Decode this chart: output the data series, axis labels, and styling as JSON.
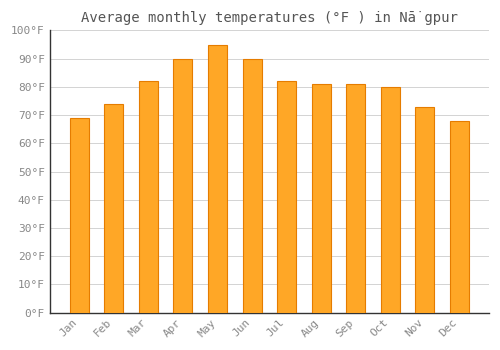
{
  "title": "Average monthly temperatures (°F ) in Nā̇gpur",
  "months": [
    "Jan",
    "Feb",
    "Mar",
    "Apr",
    "May",
    "Jun",
    "Jul",
    "Aug",
    "Sep",
    "Oct",
    "Nov",
    "Dec"
  ],
  "values": [
    69,
    74,
    82,
    90,
    95,
    90,
    82,
    81,
    81,
    80,
    73,
    68
  ],
  "bar_color": "#FFA726",
  "bar_edge_color": "#E57C00",
  "background_color": "#FFFFFF",
  "plot_bg_color": "#FFFFFF",
  "grid_color": "#CCCCCC",
  "ylim": [
    0,
    100
  ],
  "ytick_step": 10,
  "title_fontsize": 10,
  "tick_fontsize": 8,
  "tick_color": "#888888",
  "title_color": "#555555"
}
